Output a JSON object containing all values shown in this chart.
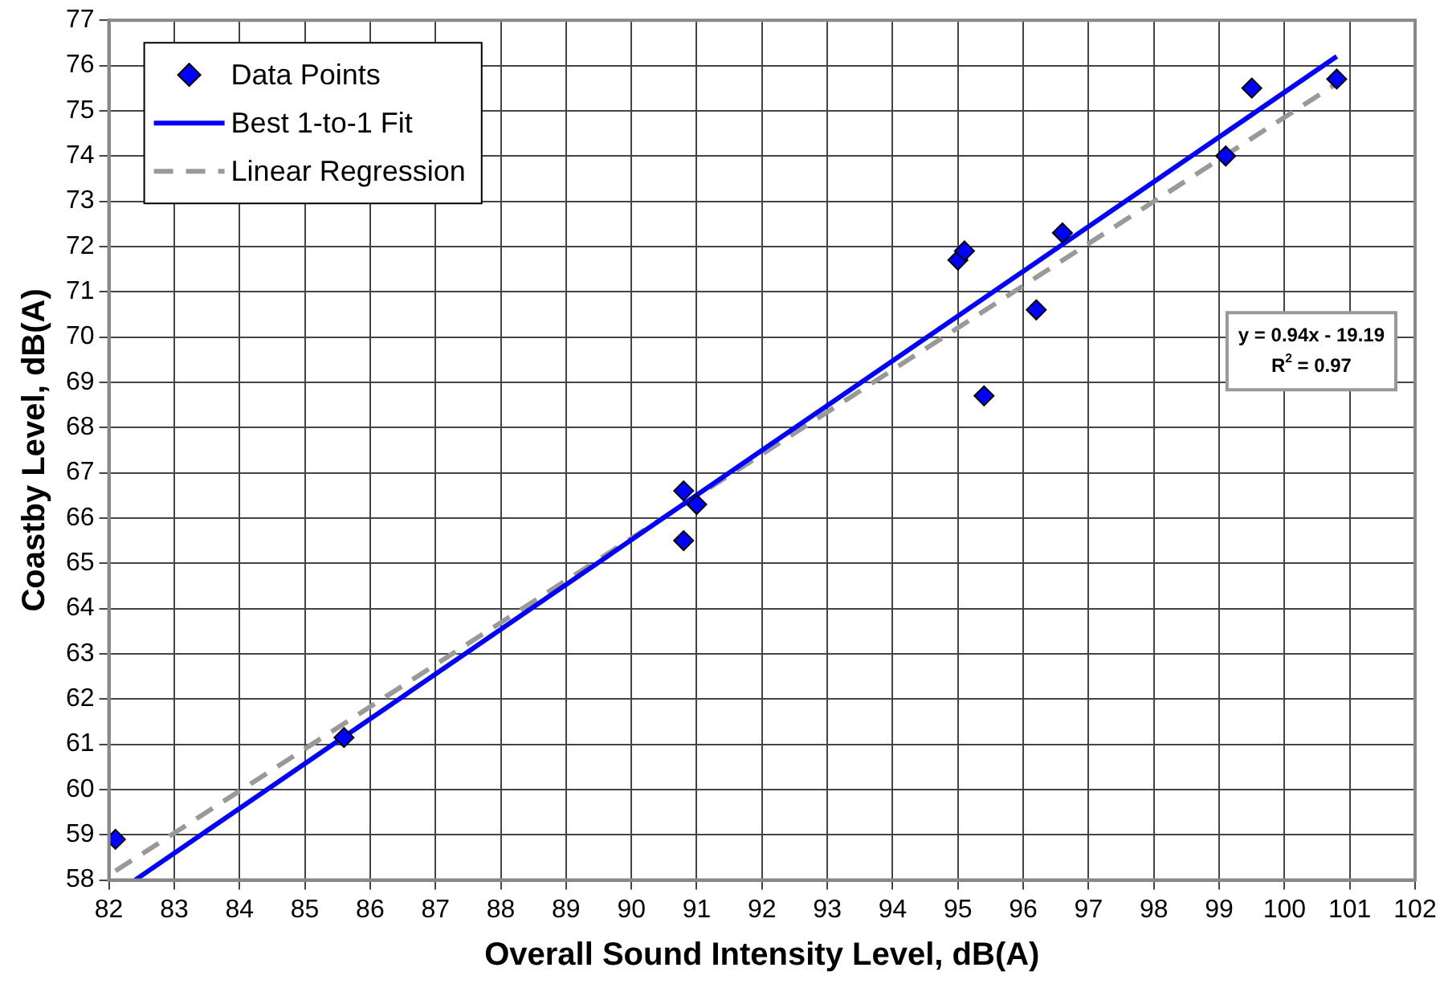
{
  "chart_data": {
    "type": "scatter",
    "xlabel": "Overall Sound Intensity Level, dB(A)",
    "ylabel": "Coastby Level, dB(A)",
    "xlim": [
      82,
      102
    ],
    "xticks": [
      82,
      83,
      84,
      85,
      86,
      87,
      88,
      89,
      90,
      91,
      92,
      93,
      94,
      95,
      96,
      97,
      98,
      99,
      100,
      101,
      102
    ],
    "ylim": [
      58,
      77
    ],
    "yticks": [
      58,
      59,
      60,
      61,
      62,
      63,
      64,
      65,
      66,
      67,
      68,
      69,
      70,
      71,
      72,
      73,
      74,
      75,
      76,
      77
    ],
    "grid": true,
    "legend": "top left",
    "series": [
      {
        "name": "Data Points",
        "type": "scatter",
        "color": "#0000ff",
        "marker": "diamond",
        "x": [
          82.1,
          85.6,
          90.8,
          90.8,
          91.0,
          95.0,
          95.1,
          95.4,
          96.2,
          96.6,
          99.1,
          99.5,
          100.8
        ],
        "values": [
          58.9,
          61.15,
          66.6,
          65.5,
          66.3,
          71.7,
          71.9,
          68.7,
          70.6,
          72.3,
          74.0,
          75.5,
          75.7
        ]
      },
      {
        "name": "Best 1-to-1 Fit",
        "type": "line",
        "color": "#0000ff",
        "line_style": "solid",
        "x": [
          82.4,
          100.8
        ],
        "values": [
          58.0,
          76.2
        ]
      },
      {
        "name": "Linear Regression",
        "type": "line",
        "color": "#999999",
        "line_style": "dashed",
        "x": [
          82.1,
          100.8
        ],
        "values": [
          58.2,
          75.6
        ]
      }
    ],
    "annotations": [
      "y = 0.94x - 19.19",
      "R$^{2}$ = 0.97"
    ]
  }
}
